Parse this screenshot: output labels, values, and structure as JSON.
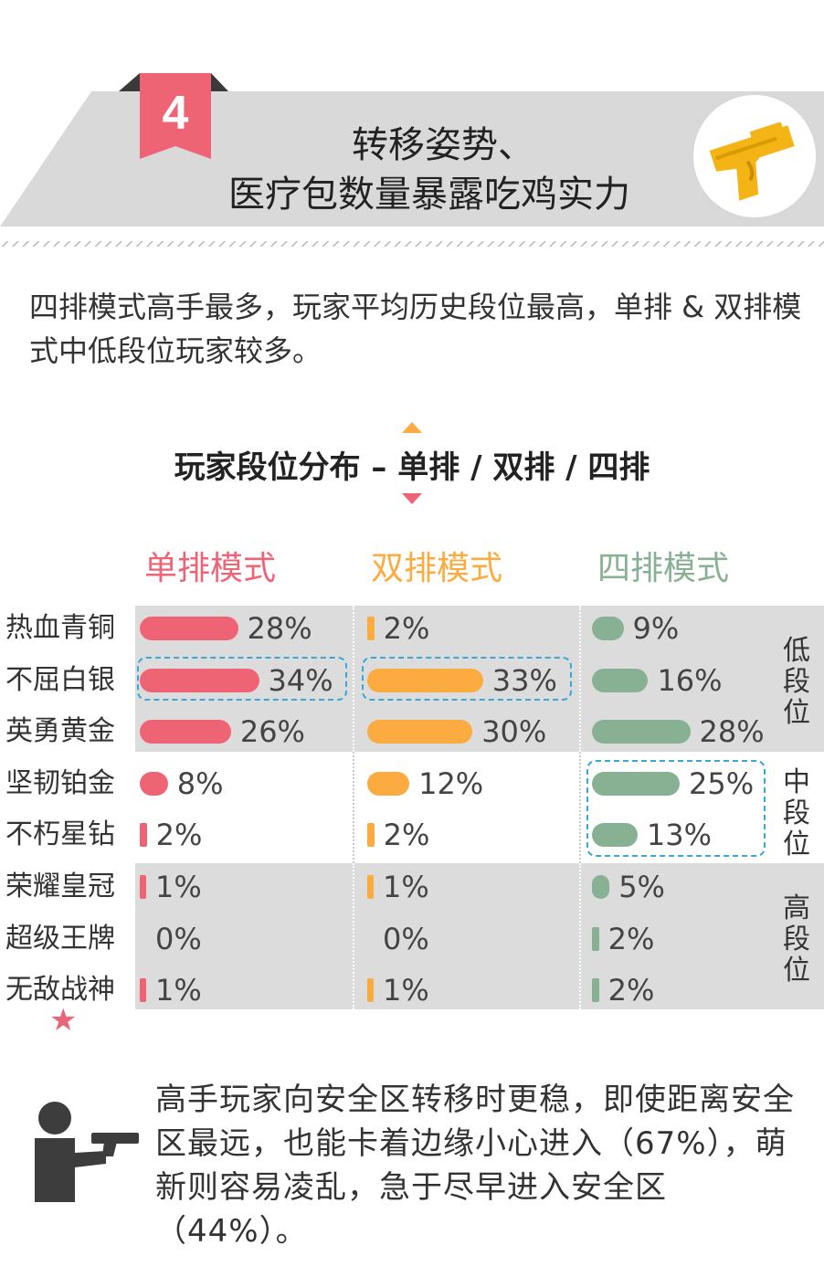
{
  "header": {
    "badge_number": "4",
    "title_line1": "转移姿势、",
    "title_line2": "医疗包数量暴露吃鸡实力"
  },
  "intro": {
    "text": "四排模式高手最多，玩家平均历史段位最高，单排 & 双排模式中低段位玩家较多。"
  },
  "chart_data": {
    "type": "bar",
    "title": "玩家段位分布 – 单排 / 双排 / 四排",
    "categories": [
      "热血青铜",
      "不屈白银",
      "英勇黄金",
      "坚韧铂金",
      "不朽星钻",
      "荣耀皇冠",
      "超级王牌",
      "无敌战神"
    ],
    "series": [
      {
        "name": "单排模式",
        "color": "#ef6475",
        "values": [
          28,
          34,
          26,
          8,
          2,
          1,
          0,
          1
        ]
      },
      {
        "name": "双排模式",
        "color": "#fbab3f",
        "values": [
          2,
          33,
          30,
          12,
          2,
          1,
          0,
          1
        ]
      },
      {
        "name": "四排模式",
        "color": "#88b193",
        "values": [
          9,
          16,
          28,
          25,
          13,
          5,
          2,
          2
        ]
      }
    ],
    "value_suffix": "%",
    "tiers": [
      {
        "label": "低段位"
      },
      {
        "label": "中段位"
      },
      {
        "label": "高段位"
      }
    ],
    "star_icon": "star-icon"
  },
  "footer": {
    "icon": "shooter-icon",
    "text": "高手玩家向安全区转移时更稳，即使距离安全区最远，也能卡着边缘小心进入（67%），萌新则容易凌乱，急于尽早进入安全区（44%）。"
  },
  "colors": {
    "badge": "#ef6475",
    "banner_gray": "#d9d9d9",
    "banner_dark": "#3a3a3a",
    "gun": "#f5b416",
    "highlight": "#3aa8d6",
    "band": "#dcdcdc"
  }
}
